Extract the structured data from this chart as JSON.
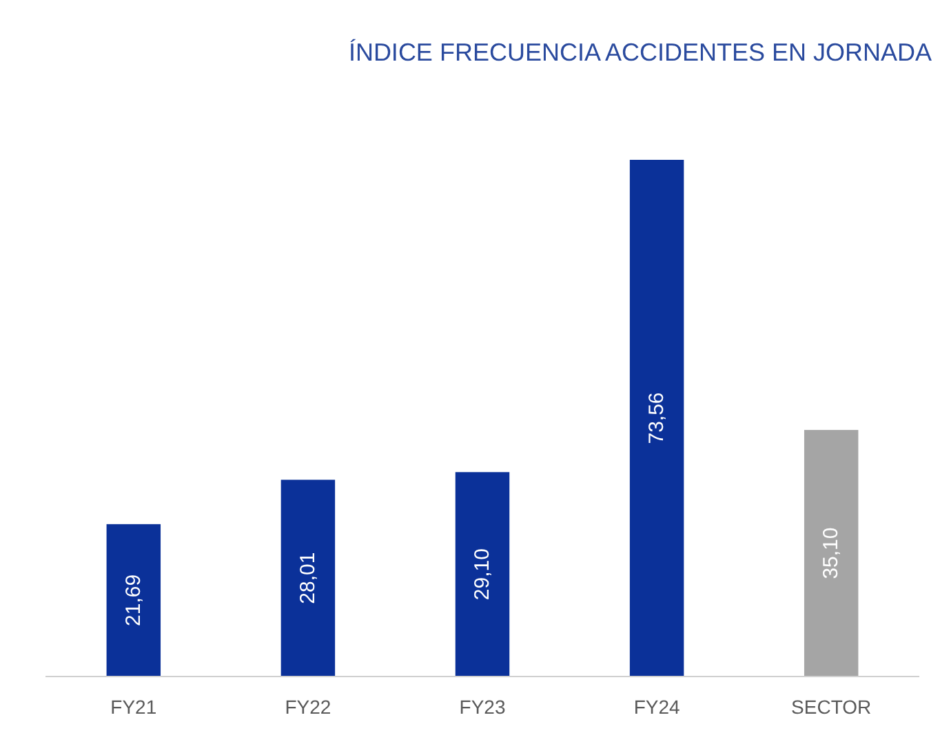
{
  "chart_data": {
    "type": "bar",
    "title": "ÍNDICE FRECUENCIA ACCIDENTES EN JORNADA",
    "categories": [
      "FY21",
      "FY22",
      "FY23",
      "FY24",
      "SECTOR"
    ],
    "values": [
      21.69,
      28.01,
      29.1,
      73.56,
      35.1
    ],
    "colors": [
      "#0b3199",
      "#0b3199",
      "#0b3199",
      "#0b3199",
      "#a5a5a5"
    ],
    "value_labels": [
      "21,69",
      "28,01",
      "29,10",
      "73,56",
      "35,10"
    ]
  }
}
